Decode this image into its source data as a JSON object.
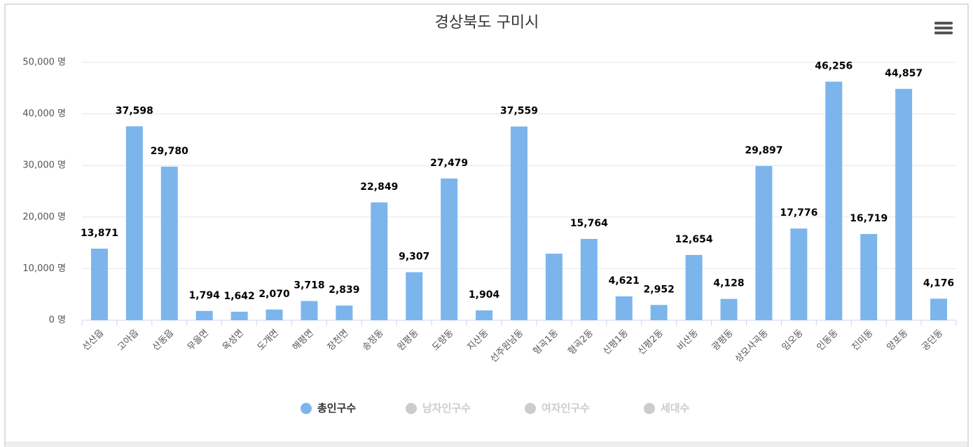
{
  "chart_data": {
    "type": "bar",
    "title": "경상북도 구미시",
    "categories": [
      "선산읍",
      "고아읍",
      "산동읍",
      "무을면",
      "옥성면",
      "도개면",
      "해평면",
      "장천면",
      "송정동",
      "원평동",
      "도량동",
      "지산동",
      "선주원남동",
      "형곡1동",
      "형곡2동",
      "신평1동",
      "신평2동",
      "비산동",
      "광평동",
      "상모사곡동",
      "임오동",
      "인동동",
      "진미동",
      "양포동",
      "공단동"
    ],
    "series": [
      {
        "name": "총인구수",
        "color": "#7cb5ec",
        "values": [
          13871,
          37598,
          29780,
          1794,
          1642,
          2070,
          3718,
          2839,
          22849,
          9307,
          27479,
          1904,
          37559,
          12900,
          15764,
          4621,
          2952,
          12654,
          4128,
          29897,
          17776,
          46256,
          16719,
          44857,
          4176
        ],
        "value_labels": [
          "13,871",
          "37,598",
          "29,780",
          "1,794",
          "1,642",
          "2,070",
          "3,718",
          "2,839",
          "22,849",
          "9,307",
          "27,479",
          "1,904",
          "37,559",
          null,
          "15,764",
          "4,621",
          "2,952",
          "12,654",
          "4,128",
          "29,897",
          "17,776",
          "46,256",
          "16,719",
          "44,857",
          "4,176"
        ]
      },
      {
        "name": "남자인구수",
        "color": "#cccccc",
        "visible": false
      },
      {
        "name": "여자인구수",
        "color": "#cccccc",
        "visible": false
      },
      {
        "name": "세대수",
        "color": "#cccccc",
        "visible": false
      }
    ],
    "ylim": [
      0,
      50000
    ],
    "yticks": [
      {
        "value": 0,
        "label": "0 명"
      },
      {
        "value": 10000,
        "label": "10,000 명"
      },
      {
        "value": 20000,
        "label": "20,000 명"
      },
      {
        "value": 30000,
        "label": "30,000 명"
      },
      {
        "value": 40000,
        "label": "40,000 명"
      },
      {
        "value": 50000,
        "label": "50,000 명"
      }
    ],
    "grid": true,
    "legend": "bottom"
  }
}
